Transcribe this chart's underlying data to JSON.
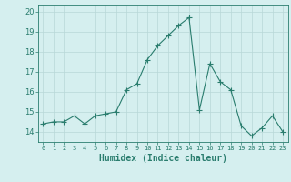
{
  "x": [
    0,
    1,
    2,
    3,
    4,
    5,
    6,
    7,
    8,
    9,
    10,
    11,
    12,
    13,
    14,
    15,
    16,
    17,
    18,
    19,
    20,
    21,
    22,
    23
  ],
  "y": [
    14.4,
    14.5,
    14.5,
    14.8,
    14.4,
    14.8,
    14.9,
    15.0,
    16.1,
    16.4,
    17.6,
    18.3,
    18.8,
    19.3,
    19.7,
    15.1,
    17.4,
    16.5,
    16.1,
    14.3,
    13.8,
    14.2,
    14.8,
    14.0
  ],
  "line_color": "#2a7d6e",
  "marker": "P",
  "marker_size": 2.5,
  "bg_color": "#d5efef",
  "grid_color": "#b8d8d8",
  "xlabel": "Humidex (Indice chaleur)",
  "ylim": [
    13.5,
    20.3
  ],
  "xlim": [
    -0.5,
    23.5
  ],
  "yticks": [
    14,
    15,
    16,
    17,
    18,
    19,
    20
  ],
  "xtick_labels": [
    "0",
    "1",
    "2",
    "3",
    "4",
    "5",
    "6",
    "7",
    "8",
    "9",
    "10",
    "11",
    "12",
    "13",
    "14",
    "15",
    "16",
    "17",
    "18",
    "19",
    "20",
    "21",
    "22",
    "23"
  ],
  "axis_color": "#2a7d6e",
  "tick_color": "#2a7d6e",
  "label_color": "#2a7d6e"
}
